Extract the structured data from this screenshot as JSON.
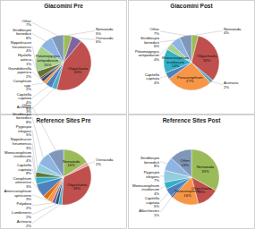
{
  "chart_data": [
    {
      "type": "pie",
      "title": "Giacomini Pre",
      "data_labels": true,
      "categories": [
        "Nematoda",
        "Ostracoda",
        "Oligochaeta",
        "Actinaria",
        "Capitella capitata",
        "Corophium spp.",
        "Grandidierella japonica",
        "Hyalella azteca",
        "Nippoleucon hinumensis",
        "Potamopyrgus antipodarum",
        "Streblospio benedicti",
        "Other"
      ],
      "values": [
        5,
        6,
        43,
        3,
        4,
        2,
        2,
        1,
        4,
        15,
        8,
        7
      ],
      "value_labels": [
        "5%",
        "6%",
        "43%",
        "3%",
        "4%",
        "2%",
        "2%",
        "1%",
        "4%",
        "15%",
        "8%",
        "7%"
      ],
      "colors": [
        "#9bbb59",
        "#8064a2",
        "#c0504d",
        "#4bacc6",
        "#4f81bd",
        "#f79646",
        "#2c4d75",
        "#772c2a",
        "#5f7530",
        "#a9d18e",
        "#8eb4e3",
        "#7f97b8"
      ]
    },
    {
      "type": "pie",
      "title": "Giacomini Post",
      "data_labels": true,
      "categories": [
        "Nematoda",
        "Oligochaeta",
        "Actinaria",
        "Paracorophium",
        "Capitella capitata",
        "Monocorophium insidiosum",
        "Potamopyrgus antipodarum",
        "Streblospio benedicti",
        "Other"
      ],
      "values": [
        4,
        32,
        2,
        27,
        4,
        14,
        4,
        6,
        7
      ],
      "value_labels": [
        "4%",
        "32%",
        "2%",
        "27%",
        "4%",
        "14%",
        "4%",
        "6%",
        "7%"
      ],
      "colors": [
        "#9bbb59",
        "#c0504d",
        "#4bacc6",
        "#f79646",
        "#4f81bd",
        "#31b0c8",
        "#a9d18e",
        "#8eb4e3",
        "#7f97b8"
      ]
    },
    {
      "type": "pie",
      "title": "Reference Sites Pre",
      "data_labels": true,
      "categories": [
        "Nematoda",
        "Ostracoda",
        "Oligochaeta",
        "Actinaria",
        "Lumbrineris",
        "Polydora",
        "Americorophium spinicorne",
        "Corophium alienense",
        "Capitella capitata",
        "Monocorophium insidiosum",
        "Nippoleucon hinumensis",
        "Pygospio elegans",
        "Streblospio benedicti",
        "Other"
      ],
      "values": [
        16,
        2,
        33,
        2,
        2,
        2,
        3,
        3,
        8,
        4,
        3,
        5,
        8,
        9
      ],
      "value_labels": [
        "16%",
        "2%",
        "33%",
        "2%",
        "2%",
        "2%",
        "3%",
        "3%",
        "8%",
        "4%",
        "3%",
        "5%",
        "8%",
        "9%"
      ],
      "colors": [
        "#9bbb59",
        "#e6a5a4",
        "#c0504d",
        "#4bacc6",
        "#2c4d75",
        "#8064a2",
        "#f79646",
        "#e46c0a",
        "#4f81bd",
        "#31b0c8",
        "#5f7530",
        "#93cddd",
        "#8eb4e3",
        "#7f97b8"
      ]
    },
    {
      "type": "pie",
      "title": "Reference Sites Post",
      "data_labels": true,
      "categories": [
        "Nematoda",
        "Oligochaeta",
        "Paracorophium",
        "Allorchestes",
        "Capitella capitata",
        "Monocorophium insidiosum",
        "Pygospio elegans",
        "Streblospio benedicti",
        "Other"
      ],
      "values": [
        33,
        13,
        16,
        1,
        5,
        4,
        7,
        8,
        13
      ],
      "value_labels": [
        "33%",
        "13%",
        "16%",
        "1%",
        "5%",
        "4%",
        "7%",
        "8%",
        "13%"
      ],
      "colors": [
        "#9bbb59",
        "#c0504d",
        "#f79646",
        "#2c4d75",
        "#4f81bd",
        "#31b0c8",
        "#93cddd",
        "#8eb4e3",
        "#7f97b8"
      ]
    }
  ]
}
